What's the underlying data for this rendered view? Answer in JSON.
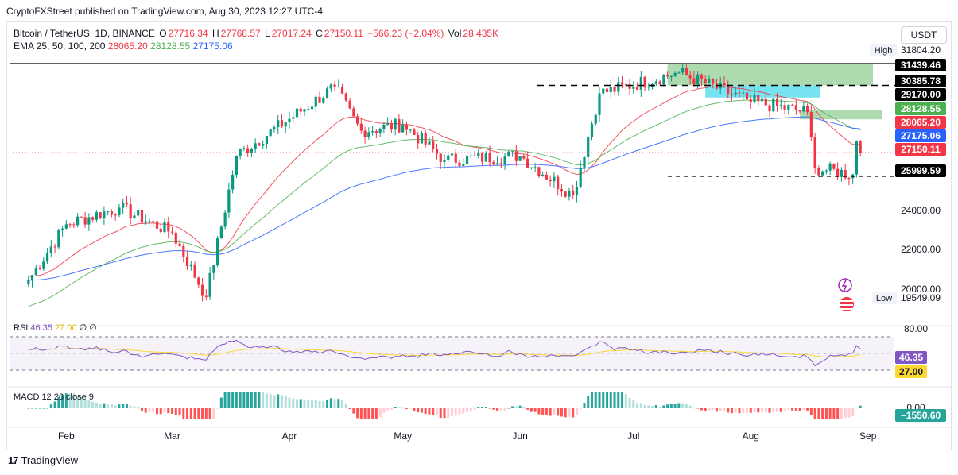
{
  "header": {
    "publish_text": "CryptoFXStreet published on TradingView.com, Aug 30, 2023 12:27 UTC-4"
  },
  "legend": {
    "symbol": "Bitcoin / TetherUS, 1D, BINANCE",
    "open_label": "O",
    "open": "27716.34",
    "high_label": "H",
    "high": "27768.57",
    "low_label": "L",
    "low": "27017.24",
    "close_label": "C",
    "close": "27150.11",
    "change": "−566.23 (−2.04%)",
    "vol_label": "Vol",
    "vol": "28.435K",
    "ema_label": "EMA 25, 50, 100, 200",
    "ema25": "28065.20",
    "ema50": "28128.55",
    "ema100": "27175.06"
  },
  "currency": "USDT",
  "price_axis": {
    "high_label": "High",
    "high_value": "31804.20",
    "low_label": "Low",
    "low_value": "19549.09",
    "ticks": [
      "24000.00",
      "22000.00",
      "20000.00"
    ],
    "badges": [
      {
        "text": "31439.46",
        "value": 31439.46,
        "bg": "#000000",
        "fg": "#ffffff"
      },
      {
        "text": "30385.78",
        "value": 30385.78,
        "bg": "#000000",
        "fg": "#ffffff"
      },
      {
        "text": "29170.00",
        "value": 29170.0,
        "bg": "#000000",
        "fg": "#ffffff"
      },
      {
        "text": "28128.55",
        "value": 28128.55,
        "bg": "#4caf50",
        "fg": "#ffffff"
      },
      {
        "text": "28065.20",
        "value": 28065.2,
        "bg": "#f23645",
        "fg": "#ffffff"
      },
      {
        "text": "27175.06",
        "value": 27175.06,
        "bg": "#2962ff",
        "fg": "#ffffff"
      },
      {
        "text": "27150.11",
        "value": 27150.11,
        "bg": "#f23645",
        "fg": "#ffffff"
      },
      {
        "text": "25999.59",
        "value": 25999.59,
        "bg": "#000000",
        "fg": "#ffffff"
      }
    ]
  },
  "rsi": {
    "legend_name": "RSI",
    "legend_value": "46.35",
    "legend_ma": "27.00",
    "legend_extra": "∅ ∅",
    "axis_tick": "80.00",
    "badge_value": "46.35",
    "badge_ma": "27.00"
  },
  "macd": {
    "legend": "MACD 12 26 close 9",
    "axis_tick": "0.00",
    "badge_value": "−1550.60"
  },
  "time_axis": [
    "Feb",
    "Mar",
    "Apr",
    "May",
    "Jun",
    "Jul",
    "Aug",
    "Sep"
  ],
  "footer": {
    "brand": "TradingView",
    "mark": "17"
  },
  "colors": {
    "up": "#089981",
    "down": "#f23645",
    "ema_red": "#f23645",
    "ema_green": "#4caf50",
    "ema_blue": "#2962ff",
    "zone_green": "#a5d6a7",
    "zone_cyan": "#67e0f0",
    "rsi_line": "#7e57c2",
    "rsi_ma": "#fdd835"
  },
  "chart_data": {
    "type": "candlestick",
    "symbol": "Bitcoin / TetherUS",
    "x_ticks": [
      "Feb",
      "Mar",
      "Apr",
      "May",
      "Jun",
      "Jul",
      "Aug",
      "Sep"
    ],
    "y_ticks": [
      24000,
      22000,
      20000
    ],
    "ylim": [
      19200,
      32200
    ],
    "price_anchors": [
      {
        "x": "Jan 22",
        "close": 21000
      },
      {
        "x": "Feb 1",
        "close": 23700
      },
      {
        "x": "Feb 15",
        "close": 24500
      },
      {
        "x": "Mar 1",
        "close": 23300
      },
      {
        "x": "Mar 10",
        "close": 20200
      },
      {
        "x": "Mar 18",
        "close": 27000
      },
      {
        "x": "Apr 13",
        "close": 30300
      },
      {
        "x": "Apr 20",
        "close": 28200
      },
      {
        "x": "May 1",
        "close": 28500
      },
      {
        "x": "May 12",
        "close": 26800
      },
      {
        "x": "Jun 1",
        "close": 27000
      },
      {
        "x": "Jun 15",
        "close": 25100
      },
      {
        "x": "Jun 22",
        "close": 30000
      },
      {
        "x": "Jul 13",
        "close": 31000
      },
      {
        "x": "Aug 1",
        "close": 29600
      },
      {
        "x": "Aug 16",
        "close": 29100
      },
      {
        "x": "Aug 18",
        "close": 26400
      },
      {
        "x": "Aug 28",
        "close": 26100
      },
      {
        "x": "Aug 29",
        "close": 27716
      },
      {
        "x": "Aug 30",
        "close": 27150
      }
    ],
    "levels": [
      31439.46,
      30385.78,
      29170.0,
      25999.59
    ]
  }
}
